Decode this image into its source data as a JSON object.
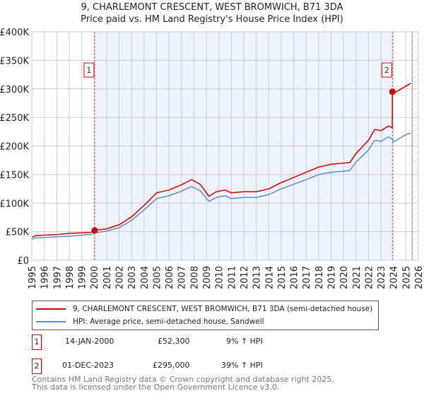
{
  "chart_data": {
    "type": "line",
    "title": "9, CHARLEMONT CRESCENT, WEST BROMWICH, B71 3DA",
    "subtitle": "Price paid vs. HM Land Registry's House Price Index (HPI)",
    "xlim": [
      1995,
      2026
    ],
    "ylim": [
      0,
      400000
    ],
    "y_ticks": [
      0,
      50000,
      100000,
      150000,
      200000,
      250000,
      300000,
      350000,
      400000
    ],
    "y_tick_labels": [
      "£0",
      "£50K",
      "£100K",
      "£150K",
      "£200K",
      "£250K",
      "£300K",
      "£350K",
      "£400K"
    ],
    "x_ticks": [
      "1995",
      "1996",
      "1997",
      "1998",
      "1999",
      "2000",
      "2001",
      "2002",
      "2003",
      "2004",
      "2005",
      "2006",
      "2007",
      "2008",
      "2009",
      "2010",
      "2011",
      "2012",
      "2013",
      "2014",
      "2015",
      "2016",
      "2017",
      "2018",
      "2019",
      "2020",
      "2021",
      "2022",
      "2023",
      "2024",
      "2025",
      "2026"
    ],
    "grid": true,
    "series": [
      {
        "name": "9, CHARLEMONT CRESCENT, WEST BROMWICH, B71 3DA (semi-detached house)",
        "color": "#cc0000",
        "x": [
          1995,
          1995.3,
          1996,
          1997,
          1998,
          1999,
          1999.7,
          2000.04,
          2001,
          2002,
          2003,
          2004,
          2005,
          2006,
          2007,
          2007.8,
          2008.5,
          2009.2,
          2009.8,
          2010.5,
          2011,
          2012,
          2013,
          2014,
          2015,
          2016,
          2017,
          2018,
          2019,
          2020,
          2020.5,
          2021,
          2022,
          2022.5,
          2023,
          2023.6,
          2023.91,
          2023.92,
          2024,
          2025,
          2025.4
        ],
        "y": [
          40000,
          43000,
          44000,
          45000,
          47000,
          48000,
          48500,
          52300,
          55000,
          62000,
          76000,
          96000,
          118000,
          123000,
          132000,
          141000,
          133000,
          112000,
          120000,
          123000,
          118000,
          120000,
          120000,
          125000,
          136000,
          145000,
          154000,
          163000,
          168000,
          170000,
          171000,
          187000,
          210000,
          229000,
          227000,
          235000,
          232000,
          295000,
          292000,
          305000,
          310000
        ]
      },
      {
        "name": "HPI: Average price, semi-detached house, Sandwell",
        "color": "#5b8bd0",
        "x": [
          1995,
          1995.3,
          1996,
          1997,
          1998,
          1999,
          1999.7,
          2000.04,
          2001,
          2002,
          2003,
          2004,
          2005,
          2006,
          2007,
          2007.8,
          2008.5,
          2009.2,
          2009.8,
          2010.5,
          2011,
          2012,
          2013,
          2014,
          2015,
          2016,
          2017,
          2018,
          2019,
          2020,
          2020.5,
          2021,
          2022,
          2022.5,
          2023,
          2023.6,
          2023.92,
          2024,
          2025,
          2025.4
        ],
        "y": [
          37000,
          39000,
          40000,
          41000,
          42000,
          44000,
          45000,
          48000,
          51000,
          57000,
          70000,
          88000,
          108000,
          113000,
          121000,
          129000,
          122000,
          103000,
          110000,
          113000,
          108000,
          110000,
          110000,
          115000,
          125000,
          133000,
          141000,
          150000,
          154000,
          156000,
          157000,
          172000,
          193000,
          210000,
          208000,
          216000,
          212000,
          207000,
          220000,
          223000
        ]
      }
    ],
    "sales": [
      {
        "label": "1",
        "x": 2000.04,
        "y": 52300
      },
      {
        "label": "2",
        "x": 2023.92,
        "y": 295000
      }
    ],
    "legend_placement": "below"
  },
  "legend": {
    "red": "9, CHARLEMONT CRESCENT, WEST BROMWICH, B71 3DA (semi-detached house)",
    "blue": "HPI: Average price, semi-detached house, Sandwell"
  },
  "transactions": [
    {
      "num": "1",
      "date": "14-JAN-2000",
      "price": "£52,300",
      "hpi": "9% ↑ HPI"
    },
    {
      "num": "2",
      "date": "01-DEC-2023",
      "price": "£295,000",
      "hpi": "39% ↑ HPI"
    }
  ],
  "footer": {
    "line1": "Contains HM Land Registry data © Crown copyright and database right 2025.",
    "line2": "This data is licensed under the Open Government Licence v3.0."
  }
}
